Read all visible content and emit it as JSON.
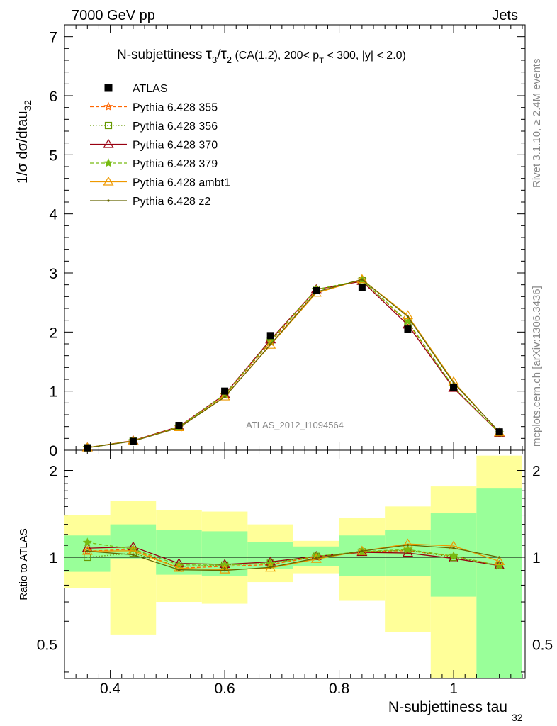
{
  "header": {
    "left": "7000 GeV pp",
    "right": "Jets"
  },
  "side_texts": {
    "rivet": "Rivet 3.1.10, ≥ 2.4M events",
    "mcplots": "mcplots.cern.ch [arXiv:1306.3436]"
  },
  "watermark": "ATLAS_2012_I1094564",
  "plot_title": {
    "prefix": "N-subjettiness ",
    "tau": "τ",
    "num_sub": "3",
    "div": "/",
    "den_sub": "2",
    "rest1": " (CA(1.2), 200< p",
    "pt_sub": "T",
    "rest2": " < 300, |y| < 2.0)"
  },
  "chart_data": {
    "type": "line",
    "ylabel": "1/σ dσ/dtau",
    "ylabel_sub": "32",
    "xlabel": "N-subjettiness tau",
    "xlabel_sub": "32",
    "ratio_ylabel": "Ratio to ATLAS",
    "xlim": [
      0.32,
      1.125
    ],
    "ylim": [
      0,
      7.2
    ],
    "ratio_ylim": [
      0.38,
      2.35
    ],
    "x_ticks": [
      "0.4",
      "0.6",
      "0.8",
      "1"
    ],
    "y_ticks": [
      "0",
      "1",
      "2",
      "3",
      "4",
      "5",
      "6",
      "7"
    ],
    "ratio_y_ticks": [
      "0.5",
      "1",
      "2"
    ],
    "bin_edges": [
      0.32,
      0.4,
      0.48,
      0.56,
      0.64,
      0.72,
      0.8,
      0.88,
      0.96,
      1.04,
      1.12
    ],
    "x": [
      0.36,
      0.44,
      0.52,
      0.6,
      0.68,
      0.76,
      0.84,
      0.92,
      1.0,
      1.08
    ],
    "data": {
      "name": "ATLAS",
      "values": [
        0.04,
        0.15,
        0.42,
        1.0,
        1.94,
        2.7,
        2.75,
        2.05,
        1.06,
        0.31
      ],
      "color": "#000000"
    },
    "uncertainty_bands": {
      "inner": [
        [
          0.89,
          1.19
        ],
        [
          0.99,
          1.3
        ],
        [
          0.87,
          1.24
        ],
        [
          0.86,
          1.23
        ],
        [
          0.91,
          1.13
        ],
        [
          0.93,
          1.09
        ],
        [
          0.86,
          1.19
        ],
        [
          0.86,
          1.24
        ],
        [
          0.73,
          1.42
        ],
        [
          0.37,
          1.73
        ]
      ],
      "outer": [
        [
          0.78,
          1.4
        ],
        [
          0.54,
          1.57
        ],
        [
          0.7,
          1.46
        ],
        [
          0.69,
          1.44
        ],
        [
          0.82,
          1.3
        ],
        [
          0.88,
          1.14
        ],
        [
          0.71,
          1.37
        ],
        [
          0.55,
          1.5
        ],
        [
          0.36,
          1.76
        ],
        [
          0.36,
          2.25
        ]
      ],
      "inner_color": "#99ff99",
      "outer_color": "#ffff99"
    },
    "series": [
      {
        "name": "Pythia 6.428 355",
        "color": "#ff6600",
        "dash": "5,3",
        "marker": "star-open",
        "values": [
          0.042,
          0.16,
          0.385,
          0.93,
          1.83,
          2.71,
          2.88,
          2.16,
          1.07,
          0.29
        ]
      },
      {
        "name": "Pythia 6.428 356",
        "color": "#669900",
        "dash": "1.5,2.5",
        "marker": "square-open",
        "values": [
          0.04,
          0.155,
          0.39,
          0.94,
          1.85,
          2.72,
          2.87,
          2.17,
          1.06,
          0.29
        ]
      },
      {
        "name": "Pythia 6.428 370",
        "color": "#990011",
        "dash": "",
        "marker": "triangle-open",
        "values": [
          0.043,
          0.163,
          0.4,
          0.945,
          1.87,
          2.72,
          2.86,
          2.12,
          1.05,
          0.29
        ]
      },
      {
        "name": "Pythia 6.428 379",
        "color": "#77bb11",
        "dash": "5,3",
        "marker": "star-filled",
        "values": [
          0.045,
          0.16,
          0.395,
          0.94,
          1.85,
          2.72,
          2.88,
          2.18,
          1.07,
          0.29
        ]
      },
      {
        "name": "Pythia 6.428 ambt1",
        "color": "#ee9900",
        "dash": "",
        "marker": "triangle-open",
        "values": [
          0.042,
          0.158,
          0.385,
          0.905,
          1.78,
          2.66,
          2.89,
          2.28,
          1.16,
          0.3
        ]
      },
      {
        "name": "Pythia 6.428 z2",
        "color": "#666600",
        "dash": "",
        "marker": "dot",
        "values": [
          0.042,
          0.153,
          0.38,
          0.9,
          1.79,
          2.68,
          2.89,
          2.26,
          1.14,
          0.31
        ]
      }
    ]
  }
}
